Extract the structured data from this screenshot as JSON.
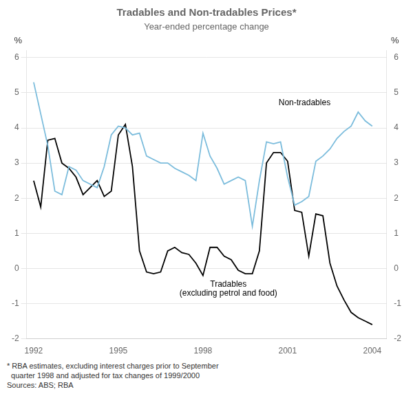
{
  "chart_data": {
    "type": "line",
    "title": "Tradables and Non-tradables Prices*",
    "subtitle": "Year-ended percentage change",
    "ylabel": "%",
    "y2label": "%",
    "x": [
      1992.0,
      1992.25,
      1992.5,
      1992.75,
      1993.0,
      1993.25,
      1993.5,
      1993.75,
      1994.0,
      1994.25,
      1994.5,
      1994.75,
      1995.0,
      1995.25,
      1995.5,
      1995.75,
      1996.0,
      1996.25,
      1996.5,
      1996.75,
      1997.0,
      1997.25,
      1997.5,
      1997.75,
      1998.0,
      1998.25,
      1998.5,
      1998.75,
      1999.0,
      1999.25,
      1999.5,
      1999.75,
      2000.0,
      2000.25,
      2000.5,
      2000.75,
      2001.0,
      2001.25,
      2001.5,
      2001.75,
      2002.0,
      2002.25,
      2002.5,
      2002.75,
      2003.0,
      2003.25,
      2003.5,
      2003.75,
      2004.0
    ],
    "series": [
      {
        "color": "#7bbcdc",
        "values": [
          5.3,
          4.4,
          3.5,
          2.2,
          2.1,
          2.9,
          2.8,
          2.5,
          2.4,
          2.3,
          2.9,
          3.8,
          4.05,
          4.0,
          3.8,
          3.85,
          3.2,
          3.1,
          3.0,
          3.0,
          2.85,
          2.75,
          2.65,
          2.5,
          3.85,
          3.2,
          2.85,
          2.4,
          2.5,
          2.6,
          2.5,
          1.2,
          2.5,
          3.6,
          3.55,
          3.6,
          2.6,
          1.8,
          1.9,
          2.05,
          3.05,
          3.2,
          3.4,
          3.7,
          3.9,
          4.05,
          4.45,
          4.2,
          4.05
        ]
      },
      {
        "color": "#000000",
        "values": [
          2.5,
          1.75,
          3.65,
          3.7,
          3.0,
          2.85,
          2.6,
          2.1,
          2.3,
          2.5,
          2.05,
          2.2,
          3.8,
          4.1,
          2.9,
          0.5,
          -0.1,
          -0.15,
          -0.1,
          0.5,
          0.6,
          0.45,
          0.4,
          0.15,
          -0.2,
          0.6,
          0.6,
          0.35,
          0.25,
          -0.05,
          -0.15,
          -0.15,
          0.5,
          3.0,
          3.3,
          3.3,
          3.05,
          1.65,
          1.6,
          0.35,
          1.55,
          1.5,
          0.15,
          -0.5,
          -0.9,
          -1.25,
          -1.4,
          -1.5,
          -1.6
        ]
      }
    ],
    "xlim": [
      1991.75,
      2004.5
    ],
    "xticks": [
      1992,
      1995,
      1998,
      2001,
      2004
    ],
    "ylim": [
      -2,
      6.2
    ],
    "yticks": [
      -2,
      -1,
      0,
      1,
      2,
      3,
      4,
      5,
      6
    ],
    "y2lim": [
      -2,
      6.2
    ],
    "y2ticks": [
      -2,
      -1,
      0,
      1,
      2,
      3,
      4,
      5,
      6
    ],
    "grid": "y",
    "annotations": [
      {
        "text": "Non-tradables",
        "x": 2001.6,
        "y": 4.65
      },
      {
        "text": "Tradables",
        "x": 1998.9,
        "y": -0.52
      },
      {
        "text": "(excluding petrol and food)",
        "x": 1998.9,
        "y": -0.78
      }
    ],
    "footnotes": [
      "* RBA estimates, excluding interest charges prior to September",
      "  quarter 1998 and adjusted for tax changes of 1999/2000",
      "Sources: ABS; RBA"
    ]
  }
}
